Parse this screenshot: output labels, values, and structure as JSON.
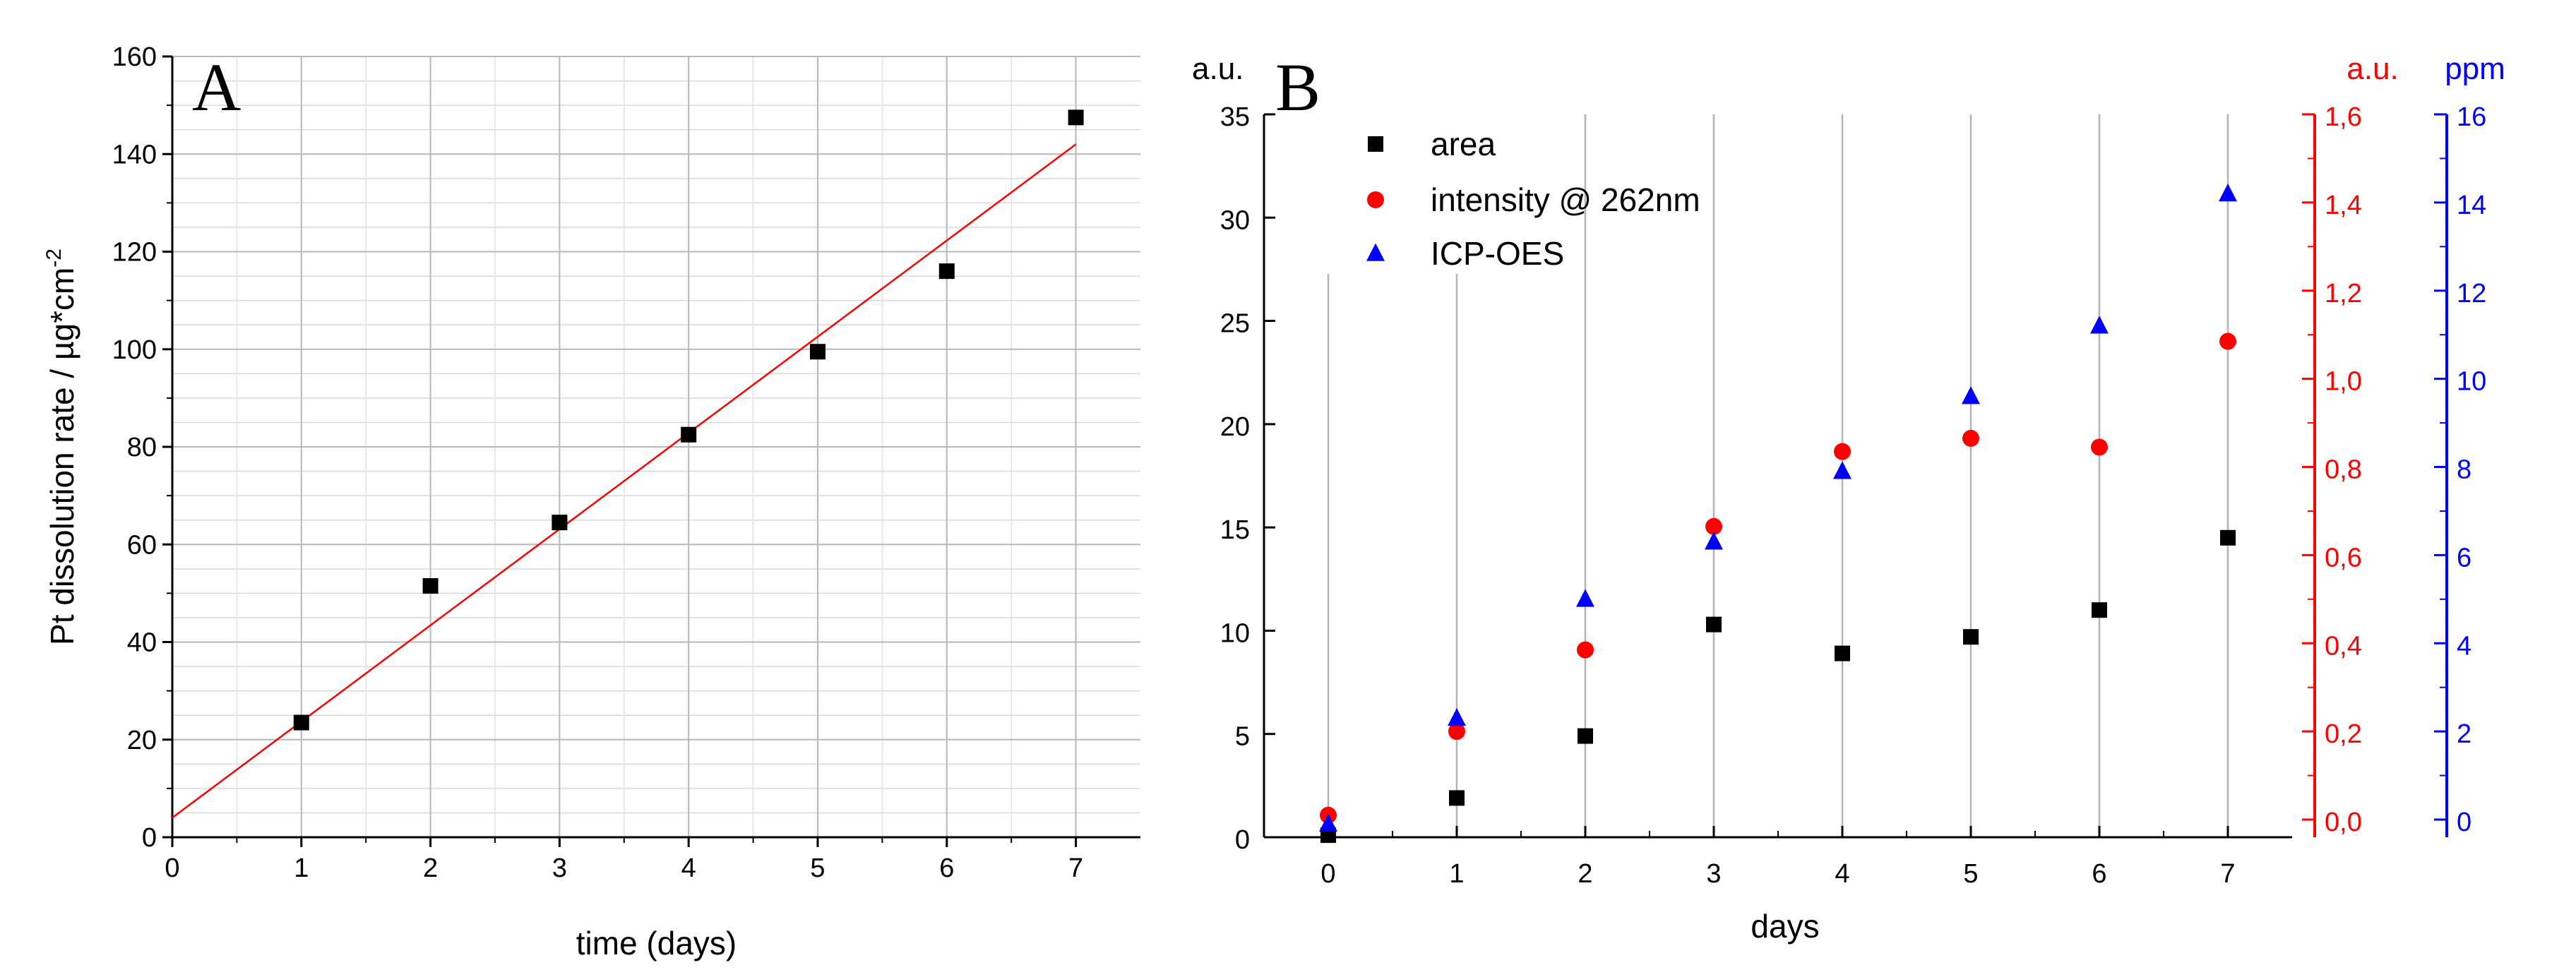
{
  "chart_data": [
    {
      "id": "A",
      "type": "scatter",
      "panel_label": "A",
      "xlabel": "time (days)",
      "ylabel": "Pt dissolution rate / µg*cm",
      "ylabel_superscript": "-2",
      "xlim": [
        0,
        7.5
      ],
      "ylim": [
        0,
        160
      ],
      "x_ticks": [
        0,
        1,
        2,
        3,
        4,
        5,
        6,
        7
      ],
      "y_ticks": [
        0,
        20,
        40,
        60,
        80,
        100,
        120,
        140,
        160
      ],
      "x_tick_labels": [
        "0",
        "1",
        "2",
        "3",
        "4",
        "5",
        "6",
        "7"
      ],
      "y_tick_labels": [
        "0",
        "20",
        "40",
        "60",
        "80",
        "100",
        "120",
        "140",
        "160"
      ],
      "grid": true,
      "series": [
        {
          "name": "Pt dissolution rate",
          "marker": "square",
          "color": "#000000",
          "x": [
            1,
            2,
            3,
            4,
            5,
            6,
            7
          ],
          "y": [
            23.5,
            51.5,
            64.5,
            82.5,
            99.5,
            116,
            147.5
          ]
        }
      ],
      "fit_line": {
        "color": "#ff0000",
        "x": [
          0,
          7
        ],
        "y": [
          4,
          142
        ]
      }
    },
    {
      "id": "B",
      "type": "scatter",
      "panel_label": "B",
      "xlabel": "days",
      "x_ticks": [
        0,
        1,
        2,
        3,
        4,
        5,
        6,
        7
      ],
      "x_tick_labels": [
        "0",
        "1",
        "2",
        "3",
        "4",
        "5",
        "6",
        "7"
      ],
      "xlim": [
        -0.5,
        7.5
      ],
      "grid": "vertical",
      "axes": {
        "left": {
          "unit": "a.u.",
          "color": "#000000",
          "ylim": [
            0,
            35
          ],
          "ticks": [
            0,
            5,
            10,
            15,
            20,
            25,
            30,
            35
          ],
          "tick_labels": [
            "0",
            "5",
            "10",
            "15",
            "20",
            "25",
            "30",
            "35"
          ]
        },
        "right_red": {
          "unit": "a.u.",
          "color": "#ff0000",
          "ylim": [
            -0.04,
            1.6
          ],
          "ticks": [
            0.0,
            0.2,
            0.4,
            0.6,
            0.8,
            1.0,
            1.2,
            1.4,
            1.6
          ],
          "tick_labels": [
            "0,0",
            "0,2",
            "0,4",
            "0,6",
            "0,8",
            "1,0",
            "1,2",
            "1,4",
            "1,6"
          ]
        },
        "right_blue": {
          "unit": "ppm",
          "color": "#0000ff",
          "ylim": [
            -0.4,
            16
          ],
          "ticks": [
            0,
            2,
            4,
            6,
            8,
            10,
            12,
            14,
            16
          ],
          "tick_labels": [
            "0",
            "2",
            "4",
            "6",
            "8",
            "10",
            "12",
            "14",
            "16"
          ]
        }
      },
      "series": [
        {
          "name": "area",
          "axis": "left",
          "marker": "square",
          "color": "#000000",
          "x": [
            0,
            1,
            2,
            3,
            4,
            5,
            6,
            7
          ],
          "y": [
            0.1,
            1.9,
            4.9,
            10.3,
            8.9,
            9.7,
            11.0,
            14.5
          ]
        },
        {
          "name": "intensity @ 262nm",
          "axis": "right_red",
          "marker": "circle",
          "color": "#ff0000",
          "x": [
            0,
            1,
            2,
            3,
            4,
            5,
            6,
            7
          ],
          "y": [
            0.01,
            0.2,
            0.385,
            0.665,
            0.835,
            0.865,
            0.845,
            1.085
          ]
        },
        {
          "name": "ICP-OES",
          "axis": "right_blue",
          "marker": "triangle",
          "color": "#0000ff",
          "x": [
            0,
            1,
            2,
            3,
            4,
            5,
            6,
            7
          ],
          "y": [
            -0.1,
            2.3,
            5.0,
            6.3,
            7.9,
            9.6,
            11.2,
            14.2
          ]
        }
      ],
      "legend_position": "top-left"
    }
  ]
}
